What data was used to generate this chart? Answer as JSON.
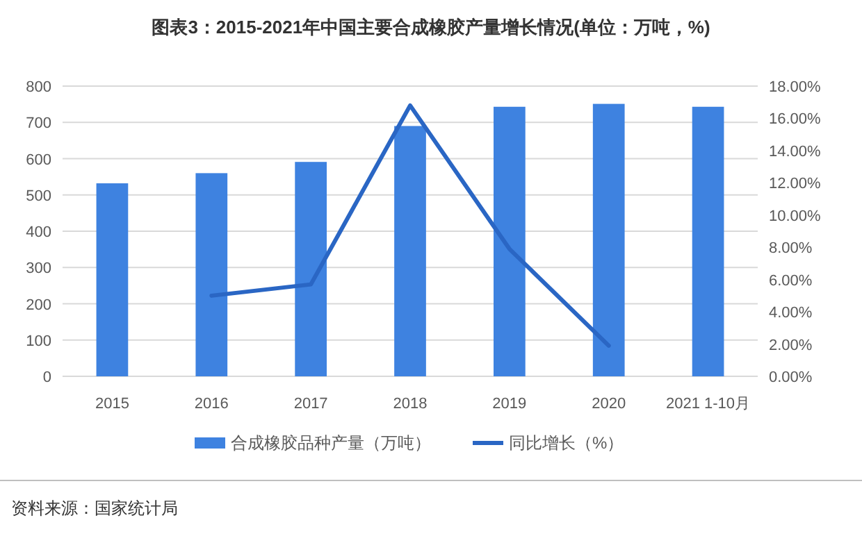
{
  "chart_data": {
    "type": "bar",
    "title": "图表3：2015-2021年中国主要合成橡胶产量增长情况(单位：万吨，%)",
    "categories": [
      "2015",
      "2016",
      "2017",
      "2018",
      "2019",
      "2020",
      "2021 1-10月"
    ],
    "series": [
      {
        "name": "合成橡胶品种产量（万吨）",
        "color": "#3e82e0",
        "values": [
          532,
          560,
          591,
          690,
          743,
          751,
          743
        ]
      },
      {
        "name": "同比增长（%）",
        "type": "line",
        "axis": "y2",
        "color": "#2a66c4",
        "values": [
          null,
          5.0,
          5.7,
          16.8,
          7.9,
          1.9,
          null
        ]
      }
    ],
    "ylim": [
      0,
      800
    ],
    "yticks": [
      0,
      100,
      200,
      300,
      400,
      500,
      600,
      700,
      800
    ],
    "y2lim": [
      0,
      18
    ],
    "y2ticks": [
      {
        "value": 0,
        "label": "0.00%"
      },
      {
        "value": 2,
        "label": "2.00%"
      },
      {
        "value": 4,
        "label": "4.00%"
      },
      {
        "value": 6,
        "label": "6.00%"
      },
      {
        "value": 8,
        "label": "8.00%"
      },
      {
        "value": 10,
        "label": "10.00%"
      },
      {
        "value": 12,
        "label": "12.00%"
      },
      {
        "value": 14,
        "label": "14.00%"
      },
      {
        "value": 16,
        "label": "16.00%"
      },
      {
        "value": 18,
        "label": "18.00%"
      }
    ],
    "grid": "y",
    "legend": "bottom",
    "marker": "none",
    "line_style": "solid",
    "annotations": [
      "资料来源：国家统计局"
    ]
  }
}
